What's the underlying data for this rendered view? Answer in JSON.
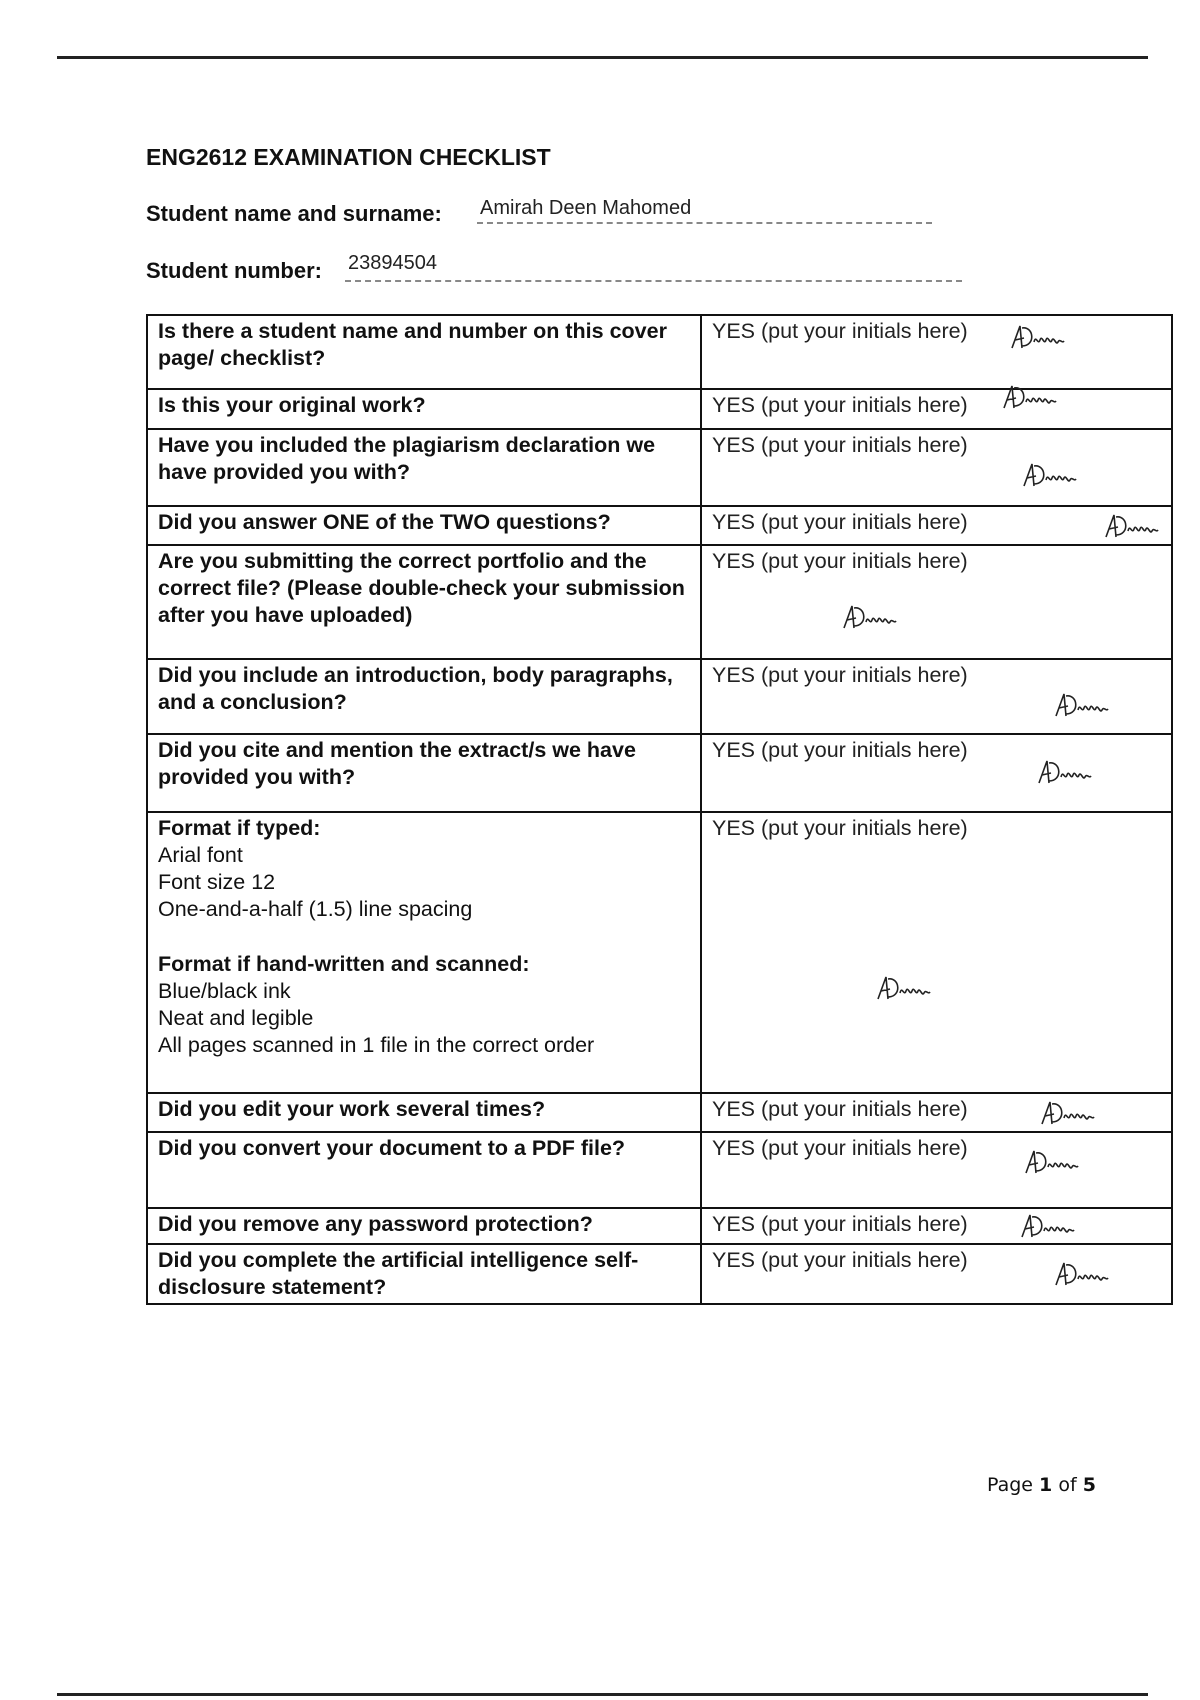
{
  "title": "ENG2612 EXAMINATION CHECKLIST",
  "student_name_label": "Student name and surname:",
  "student_name_value": "Amirah Deen Mahomed",
  "student_number_label": "Student number:",
  "student_number_value": "23894504",
  "yes_label": "YES (put your initials here)",
  "signature_text": "ADeen",
  "rows": [
    {
      "q": "Is there a student name and number on this cover page/ checklist?"
    },
    {
      "q": "Is this your original work?"
    },
    {
      "q": "Have you included the plagiarism declaration we have provided you with?"
    },
    {
      "q": "Did you answer ONE of the TWO questions?"
    },
    {
      "q": "Are you submitting the correct portfolio and the correct file? (Please double-check your submission after you have uploaded)"
    },
    {
      "q": "Did you include an introduction, body paragraphs, and a conclusion?"
    },
    {
      "q": "Did you cite and mention the extract/s we have provided you with?"
    },
    {
      "q": "Format if typed:",
      "lines": [
        "Arial font",
        "Font size 12",
        "One-and-a-half (1.5) line spacing"
      ],
      "q2": "Format if hand-written and scanned:",
      "lines2": [
        "Blue/black ink",
        "Neat and legible",
        "All pages scanned in 1 file in the correct order"
      ]
    },
    {
      "q": "Did you edit your work several times?"
    },
    {
      "q": "Did you convert your document to a PDF file?"
    },
    {
      "q": "Did you remove any password protection?"
    },
    {
      "q": "Did you complete the artificial intelligence self-disclosure statement?"
    }
  ],
  "page": {
    "prefix": "Page ",
    "current": "1",
    "sep": " of ",
    "total": "5"
  }
}
